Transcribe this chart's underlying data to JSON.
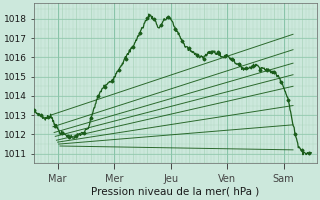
{
  "ylabel": "Pression niveau de la mer( hPa )",
  "background_color": "#cce8dc",
  "plot_bg_color": "#cce8dc",
  "grid_color_major": "#88c4a8",
  "grid_color_minor": "#aad4bc",
  "line_color": "#1a5c1a",
  "ylim": [
    1010.5,
    1018.8
  ],
  "yticks": [
    1011,
    1012,
    1013,
    1014,
    1015,
    1016,
    1017,
    1018
  ],
  "day_labels": [
    "Mar",
    "Mer",
    "Jeu",
    "Ven",
    "Sam"
  ],
  "day_positions": [
    20,
    68,
    116,
    164,
    212
  ],
  "xlim": [
    0,
    240
  ],
  "total_points": 240,
  "forecast_lines": [
    [
      14,
      1013.0,
      220,
      1017.2
    ],
    [
      16,
      1012.4,
      220,
      1016.4
    ],
    [
      17,
      1012.1,
      220,
      1015.7
    ],
    [
      18,
      1011.9,
      220,
      1015.1
    ],
    [
      19,
      1011.7,
      220,
      1014.5
    ],
    [
      20,
      1011.6,
      220,
      1013.5
    ],
    [
      21,
      1011.5,
      220,
      1012.5
    ],
    [
      22,
      1011.4,
      220,
      1011.2
    ]
  ],
  "obs_segments": [
    [
      0,
      1013.2
    ],
    [
      5,
      1013.0
    ],
    [
      10,
      1012.8
    ],
    [
      14,
      1013.0
    ],
    [
      18,
      1012.5
    ],
    [
      22,
      1012.1
    ],
    [
      26,
      1012.0
    ],
    [
      30,
      1011.9
    ],
    [
      34,
      1011.85
    ],
    [
      38,
      1012.0
    ],
    [
      42,
      1012.1
    ],
    [
      46,
      1012.3
    ],
    [
      50,
      1013.2
    ],
    [
      54,
      1013.9
    ],
    [
      58,
      1014.4
    ],
    [
      62,
      1014.6
    ],
    [
      66,
      1014.8
    ],
    [
      70,
      1015.2
    ],
    [
      74,
      1015.6
    ],
    [
      78,
      1016.0
    ],
    [
      82,
      1016.4
    ],
    [
      86,
      1016.8
    ],
    [
      90,
      1017.3
    ],
    [
      94,
      1017.8
    ],
    [
      98,
      1018.2
    ],
    [
      102,
      1018.0
    ],
    [
      106,
      1017.5
    ],
    [
      110,
      1017.9
    ],
    [
      114,
      1018.1
    ],
    [
      116,
      1018.0
    ],
    [
      120,
      1017.5
    ],
    [
      124,
      1017.1
    ],
    [
      128,
      1016.6
    ],
    [
      132,
      1016.4
    ],
    [
      136,
      1016.2
    ],
    [
      140,
      1016.1
    ],
    [
      144,
      1016.0
    ],
    [
      148,
      1016.2
    ],
    [
      152,
      1016.3
    ],
    [
      156,
      1016.2
    ],
    [
      160,
      1016.0
    ],
    [
      164,
      1016.1
    ],
    [
      168,
      1015.9
    ],
    [
      172,
      1015.7
    ],
    [
      176,
      1015.5
    ],
    [
      180,
      1015.4
    ],
    [
      184,
      1015.5
    ],
    [
      188,
      1015.6
    ],
    [
      192,
      1015.5
    ],
    [
      196,
      1015.4
    ],
    [
      200,
      1015.3
    ],
    [
      204,
      1015.2
    ],
    [
      208,
      1015.0
    ],
    [
      212,
      1014.5
    ],
    [
      216,
      1013.8
    ],
    [
      220,
      1012.5
    ],
    [
      224,
      1011.5
    ],
    [
      228,
      1011.1
    ],
    [
      232,
      1011.0
    ],
    [
      236,
      1011.05
    ]
  ]
}
